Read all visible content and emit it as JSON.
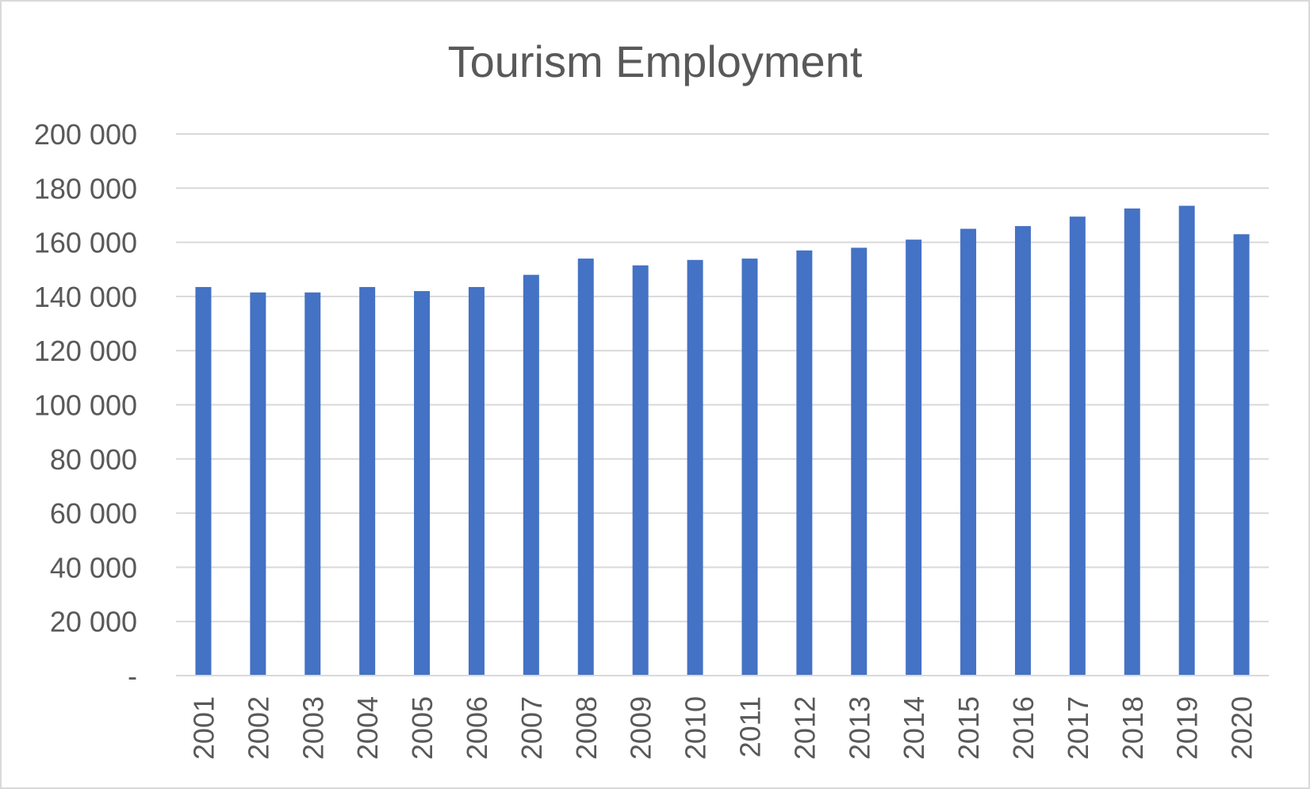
{
  "chart_data": {
    "type": "bar",
    "title": "Tourism Employment",
    "xlabel": "",
    "ylabel": "",
    "categories": [
      "2001",
      "2002",
      "2003",
      "2004",
      "2005",
      "2006",
      "2007",
      "2008",
      "2009",
      "2010",
      "2011",
      "2012",
      "2013",
      "2014",
      "2015",
      "2016",
      "2017",
      "2018",
      "2019",
      "2020"
    ],
    "values": [
      143500,
      141500,
      141500,
      143500,
      142000,
      143500,
      148000,
      154000,
      151500,
      153500,
      154000,
      157000,
      158000,
      161000,
      165000,
      166000,
      169500,
      172500,
      173500,
      163000
    ],
    "ylim": [
      0,
      200000
    ],
    "y_ticks": [
      0,
      20000,
      40000,
      60000,
      80000,
      100000,
      120000,
      140000,
      160000,
      180000,
      200000
    ],
    "y_tick_labels": [
      "-",
      "20 000",
      "40 000",
      "60 000",
      "80 000",
      "100 000",
      "120 000",
      "140 000",
      "160 000",
      "180 000",
      "200 000"
    ],
    "grid": true,
    "legend": "none",
    "bar_color": "#4472C4",
    "grid_color": "#d9d9d9",
    "text_color": "#595959"
  }
}
